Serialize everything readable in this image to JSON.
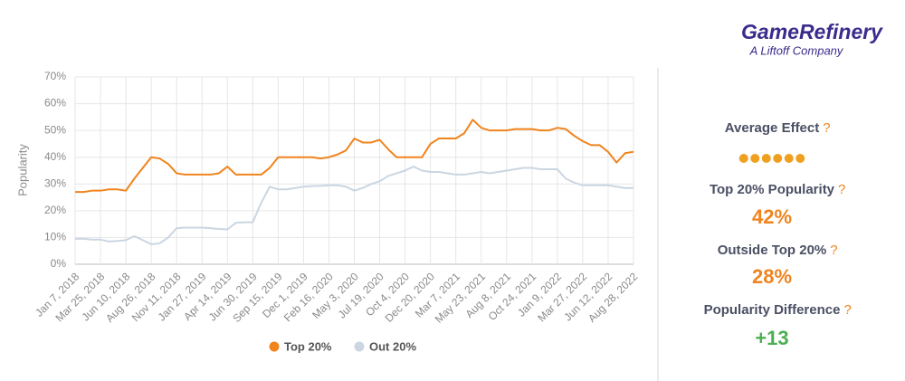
{
  "chart_data": {
    "type": "line",
    "y_label": "Popularity",
    "categories": [
      "Jan 7, 2018",
      null,
      null,
      "Mar 25, 2018",
      null,
      null,
      "Jun 10, 2018",
      null,
      null,
      "Aug 26, 2018",
      null,
      null,
      "Nov 11, 2018",
      null,
      null,
      "Jan 27, 2019",
      null,
      null,
      "Apr 14, 2019",
      null,
      null,
      "Jun 30, 2019",
      null,
      null,
      "Sep 15, 2019",
      null,
      null,
      "Dec 1, 2019",
      null,
      null,
      "Feb 16, 2020",
      null,
      null,
      "May 3, 2020",
      null,
      null,
      "Jul 19, 2020",
      null,
      null,
      "Oct 4, 2020",
      null,
      null,
      "Dec 20, 2020",
      null,
      null,
      "Mar 7, 2021",
      null,
      null,
      "May 23, 2021",
      null,
      null,
      "Aug 8, 2021",
      null,
      null,
      "Oct 24, 2021",
      null,
      null,
      "Jan 9, 2022",
      null,
      null,
      "Mar 27, 2022",
      null,
      null,
      "Jun 12, 2022",
      null,
      null,
      "Aug 28, 2022"
    ],
    "series": [
      {
        "name": "Top 20%",
        "color": "#f0841e",
        "values": [
          27,
          27,
          27.5,
          27.5,
          28,
          28,
          27.5,
          32,
          36,
          40,
          39.5,
          37.5,
          34,
          33.5,
          33.5,
          33.5,
          33.5,
          34,
          36.5,
          33.5,
          33.5,
          33.5,
          33.5,
          36,
          40,
          40,
          40,
          40,
          40,
          39.5,
          40,
          41,
          42.5,
          47,
          45.5,
          45.5,
          46.5,
          43,
          40,
          40,
          40,
          40,
          45,
          47,
          47,
          47,
          49,
          54,
          51,
          50,
          50,
          50,
          50.5,
          50.5,
          50.5,
          50,
          50,
          51,
          50.5,
          48,
          46,
          44.5,
          44.5,
          42,
          38,
          41.5,
          42
        ]
      },
      {
        "name": "Out 20%",
        "color": "#cbd6e2",
        "values": [
          9.5,
          9.5,
          9.2,
          9.2,
          8.5,
          8.7,
          9,
          10.5,
          9,
          7.5,
          7.8,
          10,
          13.5,
          13.7,
          13.7,
          13.7,
          13.5,
          13.2,
          13,
          15.5,
          15.7,
          15.7,
          23,
          29,
          28,
          28,
          28.5,
          29,
          29.2,
          29.3,
          29.5,
          29.5,
          29,
          27.5,
          28.5,
          30,
          31,
          33,
          34,
          35,
          36.5,
          35,
          34.5,
          34.5,
          34,
          33.5,
          33.5,
          34,
          34.5,
          34,
          34.5,
          35,
          35.5,
          36,
          36,
          35.5,
          35.5,
          35.5,
          32,
          30.5,
          29.5,
          29.5,
          29.5,
          29.5,
          29,
          28.5,
          28.5
        ]
      }
    ],
    "ylim": [
      0,
      70
    ],
    "yticks": [
      {
        "value": 0,
        "label": "0%"
      },
      {
        "value": 10,
        "label": "10%"
      },
      {
        "value": 20,
        "label": "20%"
      },
      {
        "value": 30,
        "label": "30%"
      },
      {
        "value": 40,
        "label": "40%"
      },
      {
        "value": 50,
        "label": "50%"
      },
      {
        "value": 60,
        "label": "60%"
      },
      {
        "value": 70,
        "label": "70%"
      }
    ],
    "grid": true,
    "legend": "bottom"
  },
  "brand": {
    "name": "GameRefinery",
    "tagline": "A Liftoff Company"
  },
  "help_icon": "?",
  "metrics": [
    {
      "label": "Average Effect",
      "rating": 6,
      "color": "#f0a020"
    },
    {
      "label": "Top 20% Popularity",
      "value": "42%",
      "color": "#f0841e"
    },
    {
      "label": "Outside Top 20%",
      "value": "28%",
      "color": "#f0841e"
    },
    {
      "label": "Popularity Difference",
      "value": "+13",
      "color": "#4caf50"
    }
  ]
}
